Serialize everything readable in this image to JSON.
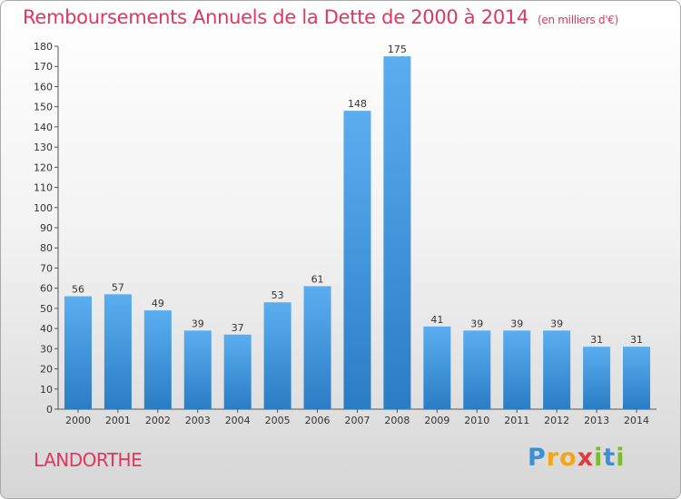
{
  "chart_data": {
    "type": "bar",
    "title": "Remboursements Annuels de la Dette de 2000 à 2014",
    "unit_note": "(en milliers d'€)",
    "categories": [
      "2000",
      "2001",
      "2002",
      "2003",
      "2004",
      "2005",
      "2006",
      "2007",
      "2008",
      "2009",
      "2010",
      "2011",
      "2012",
      "2013",
      "2014"
    ],
    "values": [
      56,
      57,
      49,
      39,
      37,
      53,
      61,
      148,
      175,
      41,
      39,
      39,
      39,
      31,
      31
    ],
    "ylim": [
      0,
      180
    ],
    "ytick_step": 10,
    "grid": false,
    "bar_color_top": "#5aaef0",
    "bar_color_bottom": "#2a7dc4"
  },
  "footer": {
    "commune": "LANDORTHE",
    "logo_text": "Proxiti"
  },
  "colors": {
    "title": "#e0365f"
  }
}
